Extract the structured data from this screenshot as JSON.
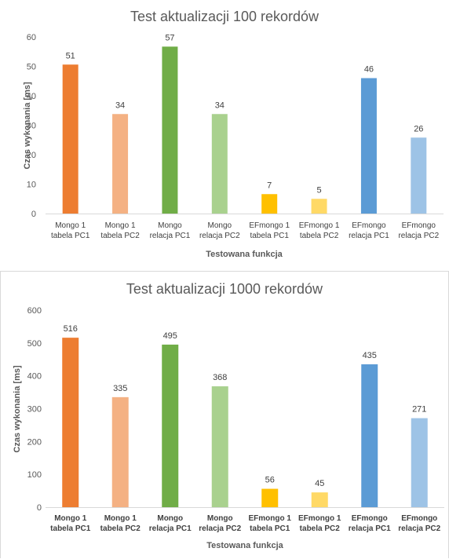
{
  "chart_data": [
    {
      "type": "bar",
      "title": "Test aktualizacji 100 rekordów",
      "xlabel": "Testowana funkcja",
      "ylabel": "Czas wykonania [ms]",
      "ylim": [
        0,
        60
      ],
      "yticks": [
        0,
        10,
        20,
        30,
        40,
        50,
        60
      ],
      "grid": false,
      "categories": [
        [
          "Mongo 1",
          "tabela PC1"
        ],
        [
          "Mongo 1",
          "tabela PC2"
        ],
        [
          "Mongo",
          "relacja PC1"
        ],
        [
          "Mongo",
          "relacja PC2"
        ],
        [
          "EFmongo 1",
          "tabela PC1"
        ],
        [
          "EFmongo 1",
          "tabela PC2"
        ],
        [
          "EFmongo",
          "relacja PC1"
        ],
        [
          "EFmongo",
          "relacja PC2"
        ]
      ],
      "values": [
        51,
        34,
        57,
        34,
        7,
        5,
        46,
        26
      ],
      "bar_values": [
        50.6,
        33.8,
        56.7,
        33.8,
        6.6,
        5.0,
        46.0,
        25.8
      ],
      "colors": [
        "#ED7D31",
        "#F4B183",
        "#70AD47",
        "#A9D18E",
        "#FFC000",
        "#FFD966",
        "#5B9BD5",
        "#9DC3E6"
      ]
    },
    {
      "type": "bar",
      "title": "Test aktualizacji 1000 rekordów",
      "xlabel": "Testowana funkcja",
      "ylabel": "Czas wykonania [ms]",
      "ylim": [
        0,
        600
      ],
      "yticks": [
        0,
        100,
        200,
        300,
        400,
        500,
        600
      ],
      "grid": false,
      "categories": [
        [
          "Mongo 1",
          "tabela PC1"
        ],
        [
          "Mongo 1",
          "tabela PC2"
        ],
        [
          "Mongo",
          "relacja PC1"
        ],
        [
          "Mongo",
          "relacja PC2"
        ],
        [
          "EFmongo 1",
          "tabela PC1"
        ],
        [
          "EFmongo 1",
          "tabela PC2"
        ],
        [
          "EFmongo",
          "relacja PC1"
        ],
        [
          "EFmongo",
          "relacja PC2"
        ]
      ],
      "values": [
        516,
        335,
        495,
        368,
        56,
        45,
        435,
        271
      ],
      "bar_values": [
        516,
        335,
        495,
        368,
        56,
        45,
        435,
        271
      ],
      "colors": [
        "#ED7D31",
        "#F4B183",
        "#70AD47",
        "#A9D18E",
        "#FFC000",
        "#FFD966",
        "#5B9BD5",
        "#9DC3E6"
      ]
    }
  ]
}
